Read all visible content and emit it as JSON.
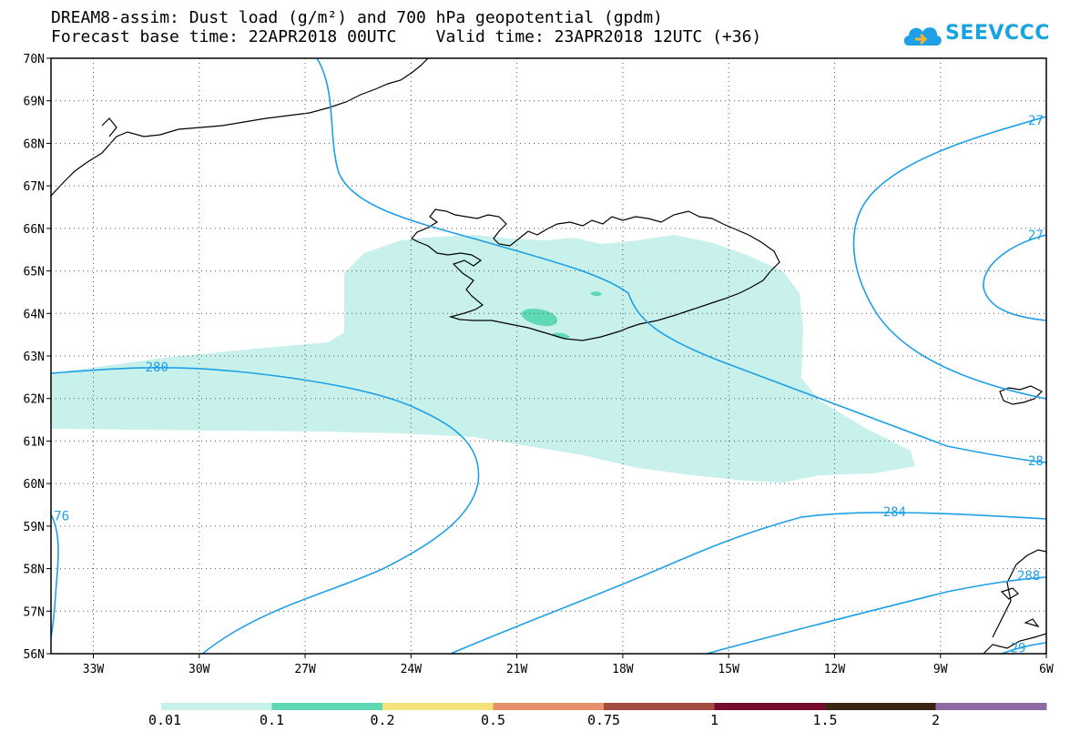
{
  "title_line1": "DREAM8-assim: Dust load (g/m²) and 700 hPa geopotential (gpdm)",
  "title_line2": "Forecast base time: 22APR2018 00UTC    Valid time: 23APR2018 12UTC (+36)",
  "logo_text": "SEEVCCC",
  "map": {
    "lon_range": [
      -34.2,
      -6
    ],
    "lat_range": [
      56,
      70
    ],
    "lon_ticks": [
      {
        "v": -33,
        "label": "33W"
      },
      {
        "v": -30,
        "label": "30W"
      },
      {
        "v": -27,
        "label": "27W"
      },
      {
        "v": -24,
        "label": "24W"
      },
      {
        "v": -21,
        "label": "21W"
      },
      {
        "v": -18,
        "label": "18W"
      },
      {
        "v": -15,
        "label": "15W"
      },
      {
        "v": -12,
        "label": "12W"
      },
      {
        "v": -9,
        "label": "9W"
      },
      {
        "v": -6,
        "label": "6W"
      }
    ],
    "lat_ticks": [
      {
        "v": 70,
        "label": "70N"
      },
      {
        "v": 69,
        "label": "69N"
      },
      {
        "v": 68,
        "label": "68N"
      },
      {
        "v": 67,
        "label": "67N"
      },
      {
        "v": 66,
        "label": "66N"
      },
      {
        "v": 65,
        "label": "65N"
      },
      {
        "v": 64,
        "label": "64N"
      },
      {
        "v": 63,
        "label": "63N"
      },
      {
        "v": 62,
        "label": "62N"
      },
      {
        "v": 61,
        "label": "61N"
      },
      {
        "v": 60,
        "label": "60N"
      },
      {
        "v": 59,
        "label": "59N"
      },
      {
        "v": 58,
        "label": "58N"
      },
      {
        "v": 57,
        "label": "57N"
      },
      {
        "v": 56,
        "label": "56N"
      }
    ],
    "contour_labels": [
      {
        "text": "280",
        "lon": -31.2,
        "lat": 62.7
      },
      {
        "text": "284",
        "lon": -10.3,
        "lat": 59.3
      },
      {
        "text": "27",
        "lon": -6.3,
        "lat": 68.5
      },
      {
        "text": "27",
        "lon": -6.3,
        "lat": 65.8
      },
      {
        "text": "28",
        "lon": -6.3,
        "lat": 60.5
      },
      {
        "text": "288",
        "lon": -6.5,
        "lat": 57.8
      },
      {
        "text": "29",
        "lon": -6.8,
        "lat": 56.1
      },
      {
        "text": "76",
        "lon": -33.9,
        "lat": 59.2
      }
    ]
  },
  "colorbar": {
    "colors": [
      "#c8f1ec",
      "#5ed9b4",
      "#f6e27a",
      "#e8906c",
      "#a34b43",
      "#770b2f",
      "#3a2515",
      "#8e6aa2"
    ],
    "labels": [
      "0.01",
      "0.1",
      "0.2",
      "0.5",
      "0.75",
      "1",
      "1.5",
      "2"
    ]
  }
}
